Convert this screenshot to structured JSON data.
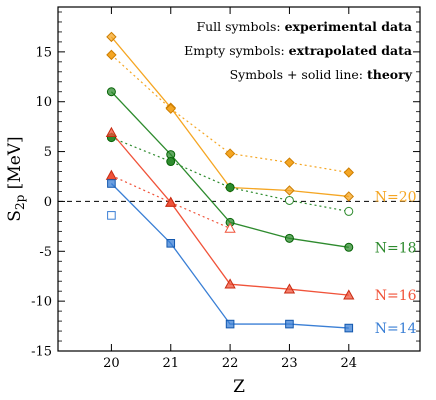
{
  "chart_data": {
    "type": "line",
    "xlabel": "Z",
    "ylabel_main": "S",
    "ylabel_sub": "2p",
    "ylabel_unit": " [MeV]",
    "x_ticks": [
      20,
      21,
      22,
      23,
      24
    ],
    "y_ticks": [
      -15,
      -10,
      -5,
      0,
      5,
      10,
      15
    ],
    "xlim": [
      19.1,
      25.2
    ],
    "ylim": [
      -15,
      19.5
    ],
    "zero_line": true,
    "annotations": [
      {
        "prefix": "Full symbols: ",
        "bold": "experimental data"
      },
      {
        "prefix": "Empty symbols: ",
        "bold": "extrapolated data"
      },
      {
        "prefix": "Symbols + solid line: ",
        "bold": "theory"
      }
    ],
    "series": [
      {
        "label": "N=20",
        "color": "#f5a623",
        "marker": "diamond",
        "theory": {
          "x": [
            20,
            21,
            22,
            23,
            24
          ],
          "y": [
            16.5,
            9.4,
            1.4,
            1.1,
            0.5
          ]
        },
        "data": {
          "x": [
            20,
            21,
            22,
            23,
            24
          ],
          "y": [
            14.7,
            9.3,
            4.8,
            3.9,
            2.9
          ],
          "filled": [
            true,
            true,
            true,
            true,
            true
          ]
        }
      },
      {
        "label": "N=18",
        "color": "#2e8b2e",
        "marker": "circle",
        "theory": {
          "x": [
            20,
            21,
            22,
            23,
            24
          ],
          "y": [
            11.0,
            4.7,
            -2.1,
            -3.7,
            -4.6
          ]
        },
        "data": {
          "x": [
            20,
            21,
            22,
            23,
            24
          ],
          "y": [
            6.4,
            4.0,
            1.4,
            0.1,
            -1.0
          ],
          "filled": [
            true,
            true,
            true,
            false,
            false
          ]
        }
      },
      {
        "label": "N=16",
        "color": "#f0533a",
        "marker": "triangle",
        "theory": {
          "x": [
            20,
            21,
            22,
            23,
            24
          ],
          "y": [
            6.9,
            -0.1,
            -8.3,
            -8.8,
            -9.4
          ]
        },
        "data": {
          "x": [
            20,
            21,
            22
          ],
          "y": [
            2.6,
            -0.1,
            -2.7
          ],
          "filled": [
            true,
            true,
            false
          ]
        }
      },
      {
        "label": "N=14",
        "color": "#3a7fd5",
        "marker": "square",
        "theory": {
          "x": [
            20,
            21,
            22,
            23,
            24
          ],
          "y": [
            1.8,
            -4.2,
            -12.3,
            -12.3,
            -12.7
          ]
        },
        "data": {
          "x": [
            20
          ],
          "y": [
            -1.4
          ],
          "filled": [
            false
          ]
        }
      }
    ]
  }
}
